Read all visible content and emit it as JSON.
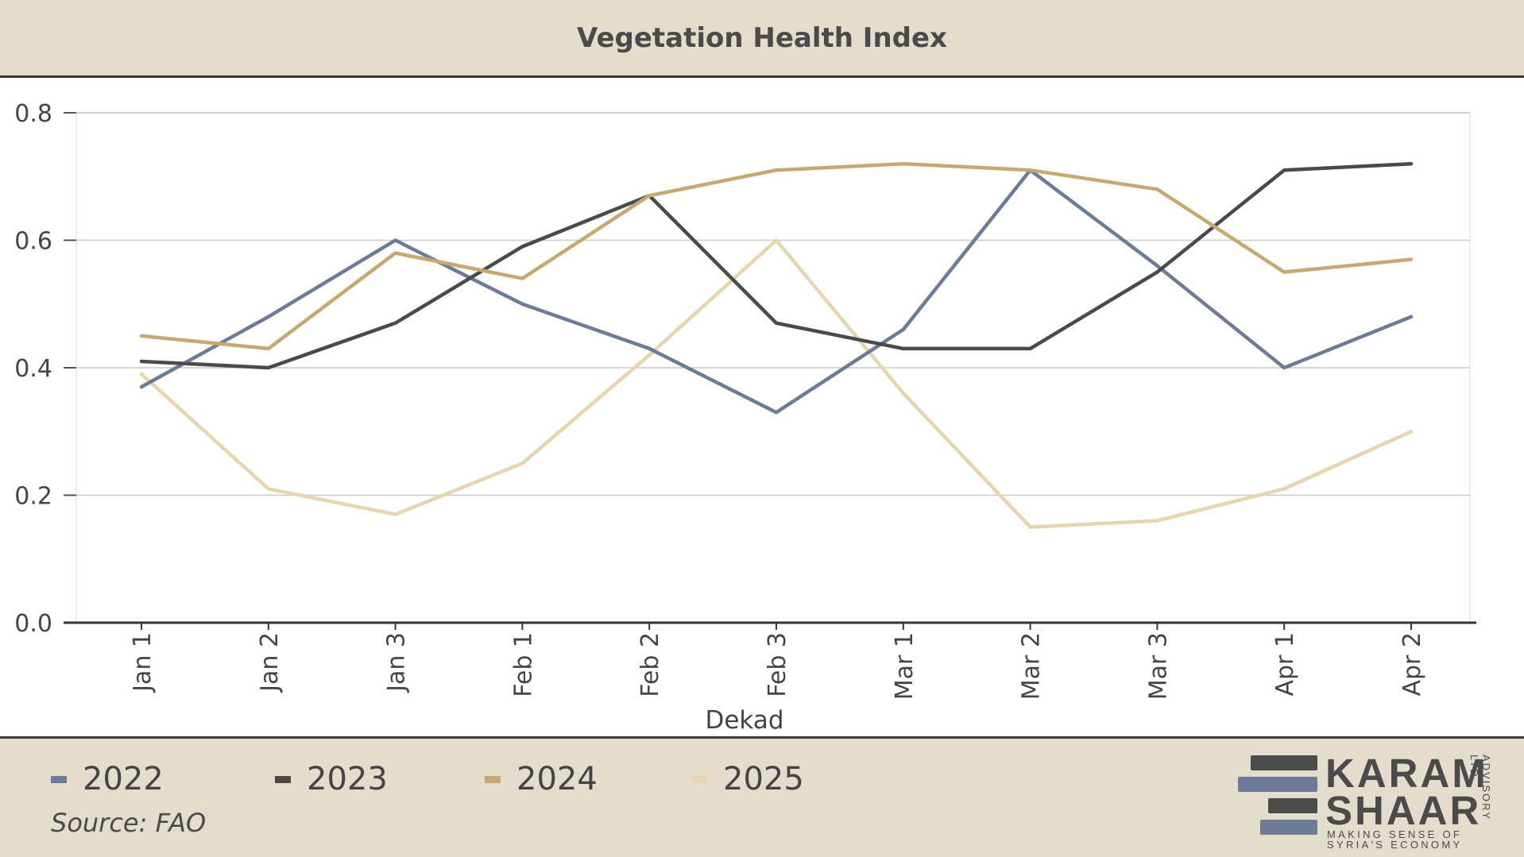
{
  "chart_data": {
    "type": "line",
    "title": "Vegetation Health Index",
    "xlabel": "Dekad",
    "ylabel": "",
    "categories": [
      "Jan 1",
      "Jan 2",
      "Jan 3",
      "Feb 1",
      "Feb 2",
      "Feb 3",
      "Mar 1",
      "Mar 2",
      "Mar 3",
      "Apr 1",
      "Apr 2"
    ],
    "ylim": [
      0,
      0.8
    ],
    "yticks": [
      "0.0",
      "0.2",
      "0.4",
      "0.6",
      "0.8"
    ],
    "grid": true,
    "legend_position": "bottom-left",
    "series": [
      {
        "name": "2022",
        "color": "#6d7b96",
        "values": [
          0.37,
          0.48,
          0.6,
          0.5,
          0.43,
          0.33,
          0.46,
          0.71,
          0.56,
          0.4,
          0.48
        ]
      },
      {
        "name": "2023",
        "color": "#4a4a4a",
        "values": [
          0.41,
          0.4,
          0.47,
          0.59,
          0.67,
          0.47,
          0.43,
          0.43,
          0.55,
          0.71,
          0.72
        ]
      },
      {
        "name": "2024",
        "color": "#c6a870",
        "values": [
          0.45,
          0.43,
          0.58,
          0.54,
          0.67,
          0.71,
          0.72,
          0.71,
          0.68,
          0.55,
          0.57
        ]
      },
      {
        "name": "2025",
        "color": "#e6d5ae",
        "values": [
          0.39,
          0.21,
          0.17,
          0.25,
          0.42,
          0.6,
          0.36,
          0.15,
          0.16,
          0.21,
          0.3
        ]
      }
    ]
  },
  "footer": {
    "source": "Source: FAO"
  },
  "logo": {
    "line1": "KARAM",
    "line2": "SHAAR",
    "tagline1": "MAKING SENSE OF",
    "tagline2": "SYRIA'S ECONOMY",
    "vertical": "ADVISORY LTD.",
    "bar_dark": "#4b4b4b",
    "bar_blue": "#6d7b96"
  }
}
